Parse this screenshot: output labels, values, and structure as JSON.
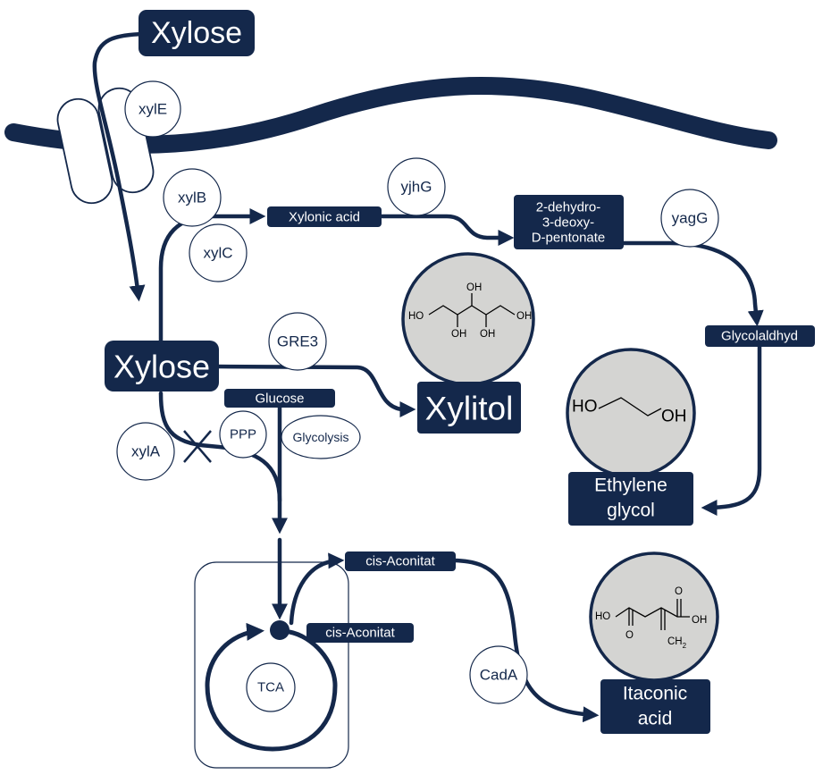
{
  "colors": {
    "navy": "#14284b",
    "molecule_fill": "#d4d4d2"
  },
  "labels": {
    "xylose_top": "Xylose",
    "xylose_main": "Xylose",
    "xylonic_acid": "Xylonic acid",
    "dehydro": [
      "2-dehydro-",
      "3-deoxy-",
      "D-pentonate"
    ],
    "glycolaldhyd": "Glycolaldhyd",
    "glucose": "Glucose",
    "xylitol": "Xylitol",
    "ethylene_glycol": [
      "Ethylene",
      "glycol"
    ],
    "itaconic_acid": [
      "Itaconic",
      "acid"
    ],
    "cis_aconitat_top": "cis-Aconitat",
    "cis_aconitat_bottom": "cis-Aconitat"
  },
  "enzymes": {
    "xylE": "xylE",
    "xylB": "xylB",
    "xylC": "xylC",
    "yjhG": "yjhG",
    "yagG": "yagG",
    "GRE3": "GRE3",
    "xylA": "xylA",
    "PPP": "PPP",
    "glycolysis": "Glycolysis",
    "CadA": "CadA",
    "TCA": "TCA"
  },
  "structures": {
    "xylitol": {
      "oh_top": "OH",
      "oh_left": "HO",
      "oh_right": "OH",
      "oh_b1": "OH",
      "oh_b2": "OH"
    },
    "ethylene_glycol": {
      "left": "HO",
      "right": "OH"
    },
    "itaconic": {
      "ho": "HO",
      "o_top": "O",
      "oh": "OH",
      "o_bottom": "O",
      "ch2": "CH",
      "ch2_sub": "2"
    }
  }
}
